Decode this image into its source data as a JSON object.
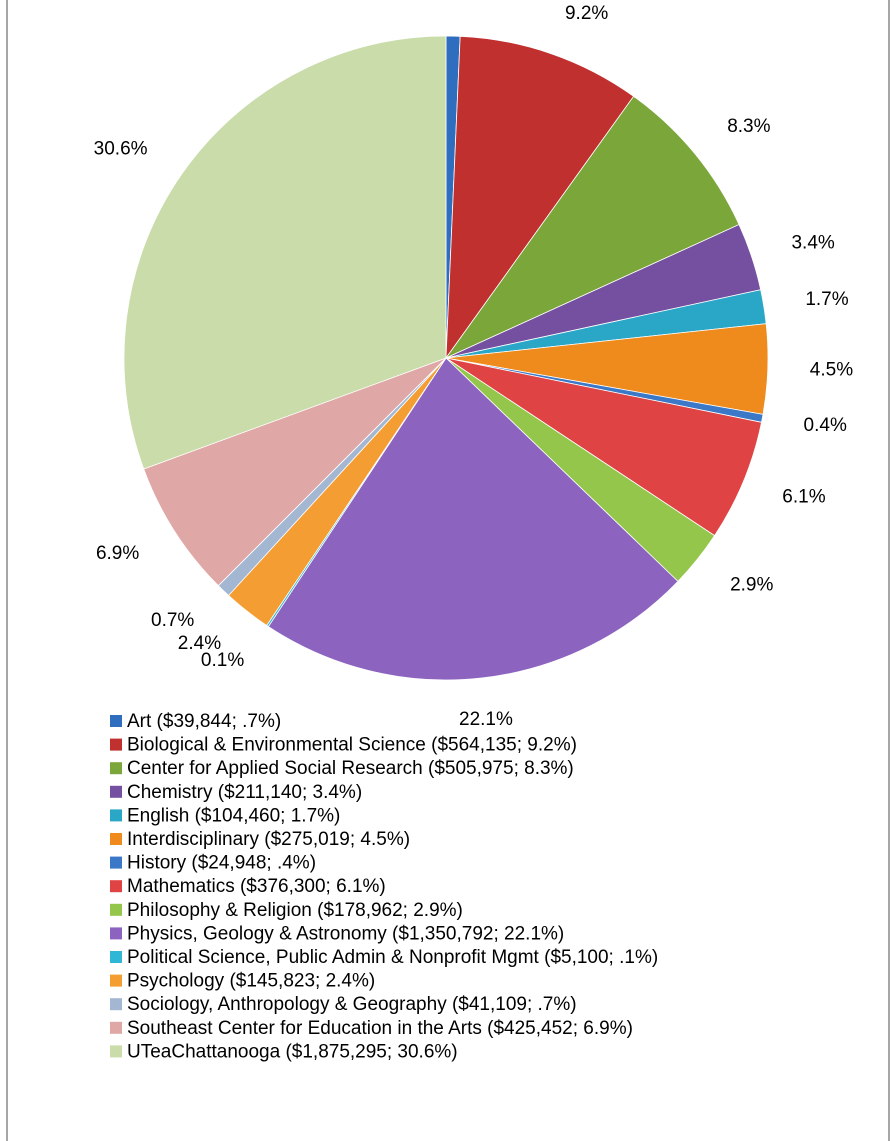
{
  "chart_data": {
    "type": "pie",
    "categories": [
      "Art ($39,844; .7%)",
      "Biological & Environmental Science ($564,135; 9.2%)",
      "Center for Applied Social Research ($505,975; 8.3%)",
      "Chemistry ($211,140; 3.4%)",
      "English ($104,460; 1.7%)",
      "Interdisciplinary ($275,019; 4.5%)",
      "History ($24,948; .4%)",
      "Mathematics ($376,300; 6.1%)",
      "Philosophy & Religion ($178,962; 2.9%)",
      "Physics, Geology & Astronomy ($1,350,792; 22.1%)",
      "Political Science, Public Admin & Nonprofit Mgmt ($5,100; .1%)",
      "Psychology ($145,823; 2.4%)",
      "Sociology, Anthropology & Geography ($41,109; .7%)",
      "Southeast Center for Education in the Arts ($425,452; 6.9%)",
      "UTeaChattanooga ($1,875,295; 30.6%)"
    ],
    "values": [
      0.7,
      9.2,
      8.3,
      3.4,
      1.7,
      4.5,
      0.4,
      6.1,
      2.9,
      22.1,
      0.1,
      2.4,
      0.7,
      6.9,
      30.6
    ],
    "value_labels": [
      "0.7%",
      "9.2%",
      "8.3%",
      "3.4%",
      "1.7%",
      "4.5%",
      "0.4%",
      "6.1%",
      "2.9%",
      "22.1%",
      "0.1%",
      "2.4%",
      "0.7%",
      "6.9%",
      "30.6%"
    ],
    "colors": [
      "#2f6ebf",
      "#c0302f",
      "#7ba63a",
      "#7650a0",
      "#2aa6c6",
      "#ef8a1c",
      "#3b78c8",
      "#e04343",
      "#93c64b",
      "#8c64c0",
      "#31b7d6",
      "#f49d32",
      "#a3b6d2",
      "#dfa7a6",
      "#c9dca9"
    ],
    "legend": "bottom"
  }
}
